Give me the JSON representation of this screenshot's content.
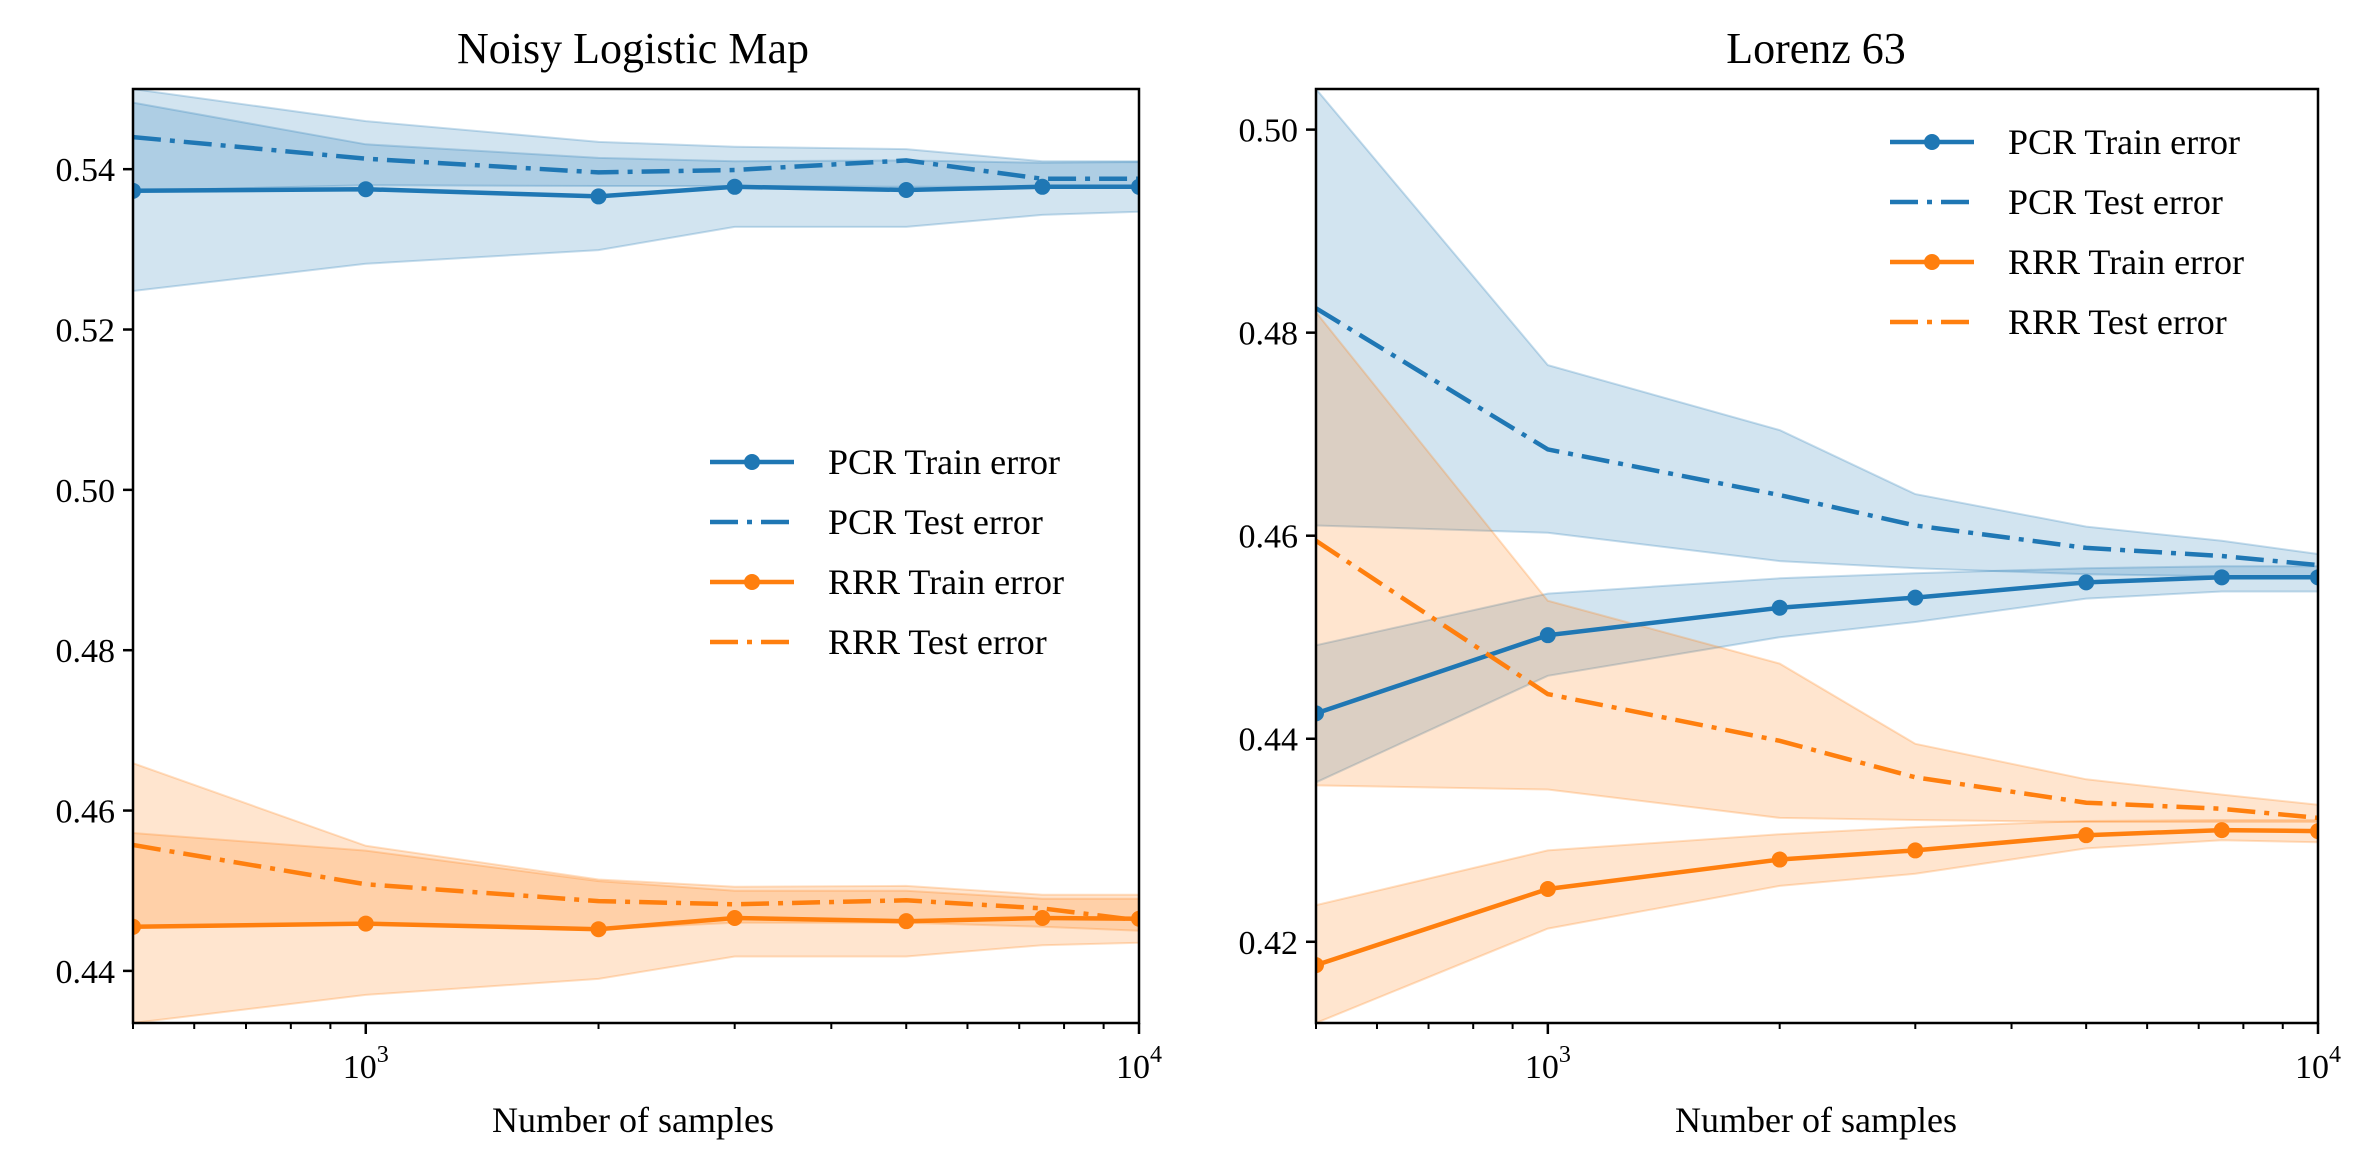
{
  "colors": {
    "pcr": "#1f77b4",
    "rrr": "#ff7f0e"
  },
  "chart_data": [
    {
      "type": "line",
      "title": "Noisy Logistic Map",
      "xlabel": "Number of samples",
      "ylabel": "",
      "xscale": "log",
      "xlim": [
        500,
        10000
      ],
      "ylim": [
        0.4335,
        0.55
      ],
      "xticks": [
        {
          "value": 1000,
          "base": "10",
          "exp": "3"
        },
        {
          "value": 10000,
          "base": "10",
          "exp": "4"
        }
      ],
      "yticks": [
        0.44,
        0.46,
        0.48,
        0.5,
        0.52,
        0.54
      ],
      "ytick_labels": [
        "0.44",
        "0.46",
        "0.48",
        "0.50",
        "0.52",
        "0.54"
      ],
      "legend_position": "center-right",
      "x": [
        500,
        1000,
        2000,
        3000,
        5000,
        7500,
        10000
      ],
      "series": [
        {
          "name": "PCR Train error",
          "color": "pcr",
          "style": "solid-marker",
          "values": [
            0.5373,
            0.5375,
            0.5366,
            0.5378,
            0.5374,
            0.5378,
            0.5378
          ],
          "band_low": [
            0.5248,
            0.5282,
            0.5299,
            0.5328,
            0.5328,
            0.5343,
            0.5347
          ],
          "band_high": [
            0.5483,
            0.5431,
            0.5414,
            0.541,
            0.5411,
            0.5408,
            0.5409
          ]
        },
        {
          "name": "PCR Test error",
          "color": "pcr",
          "style": "dashdot",
          "values": [
            0.544,
            0.5413,
            0.5396,
            0.5399,
            0.5411,
            0.5388,
            0.5388
          ],
          "band_low": [
            0.5373,
            0.538,
            0.5379,
            0.5379,
            0.5378,
            0.5378,
            0.5378
          ],
          "band_high": [
            0.55,
            0.546,
            0.5434,
            0.5428,
            0.5425,
            0.541,
            0.541
          ]
        },
        {
          "name": "RRR Train error",
          "color": "rrr",
          "style": "solid-marker",
          "values": [
            0.4455,
            0.4459,
            0.4452,
            0.4466,
            0.4462,
            0.4466,
            0.4465
          ],
          "band_low": [
            0.4335,
            0.437,
            0.439,
            0.4418,
            0.4418,
            0.4432,
            0.4435
          ],
          "band_high": [
            0.4572,
            0.455,
            0.4512,
            0.45,
            0.45,
            0.449,
            0.449
          ]
        },
        {
          "name": "RRR Test error",
          "color": "rrr",
          "style": "dashdot",
          "values": [
            0.4557,
            0.4508,
            0.4487,
            0.4483,
            0.4488,
            0.4478,
            0.4463
          ],
          "band_low": [
            0.4455,
            0.4459,
            0.4452,
            0.446,
            0.446,
            0.4455,
            0.445
          ],
          "band_high": [
            0.4659,
            0.4556,
            0.4514,
            0.4505,
            0.4506,
            0.4495,
            0.4495
          ]
        }
      ]
    },
    {
      "type": "line",
      "title": "Lorenz 63",
      "xlabel": "Number of samples",
      "ylabel": "",
      "xscale": "log",
      "xlim": [
        500,
        10000
      ],
      "ylim": [
        0.412,
        0.504
      ],
      "xticks": [
        {
          "value": 1000,
          "base": "10",
          "exp": "3"
        },
        {
          "value": 10000,
          "base": "10",
          "exp": "4"
        }
      ],
      "yticks": [
        0.42,
        0.44,
        0.46,
        0.48,
        0.5
      ],
      "ytick_labels": [
        "0.42",
        "0.44",
        "0.46",
        "0.48",
        "0.50"
      ],
      "legend_position": "upper-right",
      "x": [
        500,
        1000,
        2000,
        3000,
        5000,
        7500,
        10000
      ],
      "series": [
        {
          "name": "PCR Train error",
          "color": "pcr",
          "style": "solid-marker",
          "values": [
            0.4425,
            0.4502,
            0.4529,
            0.4539,
            0.4554,
            0.4559,
            0.4559
          ],
          "band_low": [
            0.4357,
            0.4462,
            0.45,
            0.4515,
            0.4538,
            0.4545,
            0.4545
          ],
          "band_high": [
            0.4492,
            0.4543,
            0.4558,
            0.4563,
            0.4568,
            0.457,
            0.457
          ]
        },
        {
          "name": "PCR Test error",
          "color": "pcr",
          "style": "dashdot",
          "values": [
            0.4824,
            0.4685,
            0.464,
            0.461,
            0.4588,
            0.458,
            0.4571
          ],
          "band_low": [
            0.461,
            0.4603,
            0.4575,
            0.4568,
            0.4562,
            0.456,
            0.456
          ],
          "band_high": [
            0.504,
            0.4768,
            0.4704,
            0.4641,
            0.4609,
            0.4595,
            0.4582
          ]
        },
        {
          "name": "RRR Train error",
          "color": "rrr",
          "style": "solid-marker",
          "values": [
            0.4177,
            0.4252,
            0.4281,
            0.429,
            0.4305,
            0.431,
            0.4309
          ],
          "band_low": [
            0.412,
            0.4213,
            0.4255,
            0.4267,
            0.4292,
            0.43,
            0.4298
          ],
          "band_high": [
            0.4236,
            0.429,
            0.4306,
            0.4313,
            0.4319,
            0.432,
            0.432
          ]
        },
        {
          "name": "RRR Test error",
          "color": "rrr",
          "style": "dashdot",
          "values": [
            0.4595,
            0.4444,
            0.4398,
            0.4362,
            0.4337,
            0.4331,
            0.4322
          ],
          "band_low": [
            0.4354,
            0.435,
            0.4322,
            0.432,
            0.4318,
            0.4318,
            0.4318
          ],
          "band_high": [
            0.482,
            0.4536,
            0.4474,
            0.4395,
            0.436,
            0.4345,
            0.4335
          ]
        }
      ]
    }
  ]
}
